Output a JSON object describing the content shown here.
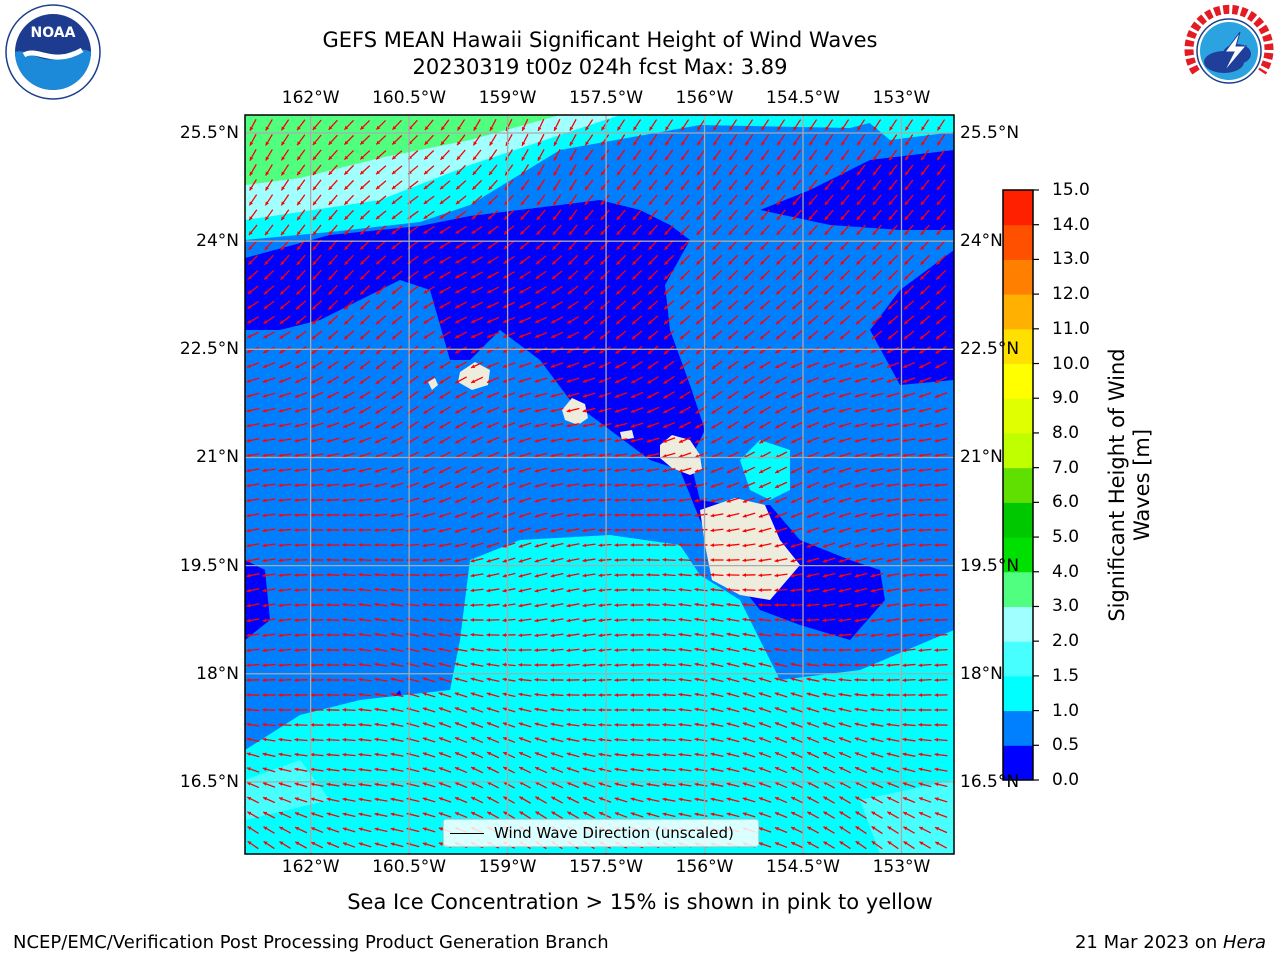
{
  "header": {
    "title_line1": "GEFS MEAN Hawaii Significant Height of Wind Waves",
    "title_line2": "20230319 t00z 024h fcst   Max: 3.89"
  },
  "logos": {
    "noaa_text": "NOAA",
    "noaa_ring_text": "NATIONAL OCEANIC AND ATMOSPHERIC ADMINISTRATION · U.S. DEPARTMENT OF COMMERCE",
    "nws_ring_text": "NATIONAL WEATHER SERVICE"
  },
  "map": {
    "lon_ticks": [
      "162°W",
      "160.5°W",
      "159°W",
      "157.5°W",
      "156°W",
      "154.5°W",
      "153°W"
    ],
    "lat_ticks": [
      "25.5°N",
      "24°N",
      "22.5°N",
      "21°N",
      "19.5°N",
      "18°N",
      "16.5°N"
    ],
    "lon_values": [
      -162,
      -160.5,
      -159,
      -157.5,
      -156,
      -154.5,
      -153
    ],
    "lat_values": [
      25.5,
      24,
      22.5,
      21,
      19.5,
      18,
      16.5
    ],
    "lon_range": [
      -163,
      -152.2
    ],
    "lat_range": [
      15.5,
      25.75
    ],
    "arrow_color": "#ff0000",
    "land_color": "#eeecdc",
    "grid": true,
    "legend_label": "Wind Wave Direction (unscaled)"
  },
  "colorbar": {
    "label_line1": "Significant Height of Wind",
    "label_line2": "Waves [m]",
    "levels": [
      "0.0",
      "0.5",
      "1.0",
      "1.5",
      "2.0",
      "3.0",
      "4.0",
      "5.0",
      "6.0",
      "7.0",
      "8.0",
      "9.0",
      "10.0",
      "11.0",
      "12.0",
      "13.0",
      "14.0",
      "15.0"
    ],
    "colors": [
      "#0000ff",
      "#0080ff",
      "#00ffff",
      "#48ffff",
      "#a0ffff",
      "#50ff80",
      "#00e000",
      "#00c800",
      "#60e000",
      "#c0ff00",
      "#e0ff00",
      "#ffff00",
      "#ffe000",
      "#ffb000",
      "#ff8000",
      "#ff5000",
      "#ff2000"
    ]
  },
  "caption": "Sea Ice Concentration > 15% is shown in pink to yellow",
  "footer": {
    "left": "NCEP/EMC/Verification Post Processing Product Generation Branch",
    "right_date": "21 Mar 2023 on ",
    "right_host": "Hera"
  }
}
